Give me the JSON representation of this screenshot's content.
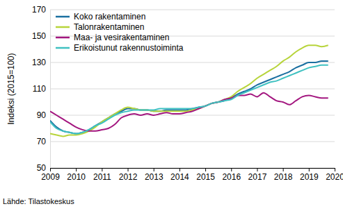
{
  "chart_data": {
    "type": "line",
    "y_label": "Indeksi (2015=100)",
    "source": "Lähde: Tilastokeskus",
    "x": [
      2009,
      2009.25,
      2009.5,
      2009.75,
      2010,
      2010.25,
      2010.5,
      2010.75,
      2011,
      2011.25,
      2011.5,
      2011.75,
      2012,
      2012.25,
      2012.5,
      2012.75,
      2013,
      2013.25,
      2013.5,
      2013.75,
      2014,
      2014.25,
      2014.5,
      2014.75,
      2015,
      2015.25,
      2015.5,
      2015.75,
      2016,
      2016.25,
      2016.5,
      2016.75,
      2017,
      2017.25,
      2017.5,
      2017.75,
      2018,
      2018.25,
      2018.5,
      2018.75,
      2019,
      2019.25,
      2019.5,
      2019.75
    ],
    "series": [
      {
        "name": "Koko rakentaminen",
        "color": "#1a6fa0",
        "values": [
          86,
          81,
          78,
          77,
          76,
          77,
          79,
          82,
          85,
          88,
          91,
          93,
          95,
          95,
          94,
          94,
          93,
          93,
          94,
          94,
          94,
          94,
          95,
          96,
          97,
          99,
          100,
          101,
          103,
          106,
          108,
          110,
          113,
          115,
          117,
          119,
          121,
          123,
          126,
          128,
          130,
          130,
          131,
          131
        ]
      },
      {
        "name": "Talonrakentaminen",
        "color": "#b7d43a",
        "values": [
          76,
          75,
          74,
          75,
          75,
          76,
          78,
          81,
          85,
          88,
          91,
          94,
          96,
          95,
          94,
          94,
          93,
          93,
          93,
          93,
          93,
          93,
          94,
          95,
          97,
          99,
          100,
          102,
          104,
          108,
          111,
          114,
          118,
          121,
          124,
          127,
          131,
          134,
          138,
          141,
          143,
          143,
          142,
          143
        ]
      },
      {
        "name": "Maa- ja vesirakentaminen",
        "color": "#a3167f",
        "values": [
          93,
          90,
          87,
          84,
          81,
          79,
          78,
          78,
          79,
          80,
          83,
          88,
          90,
          91,
          90,
          91,
          90,
          91,
          92,
          91,
          91,
          92,
          93,
          95,
          97,
          99,
          100,
          102,
          103,
          105,
          105,
          106,
          104,
          107,
          104,
          101,
          100,
          98,
          101,
          104,
          105,
          104,
          103,
          103
        ]
      },
      {
        "name": "Erikoistunut rakennustoiminta",
        "color": "#3fc1c1",
        "values": [
          85,
          80,
          78,
          77,
          76,
          77,
          79,
          82,
          84,
          87,
          90,
          92,
          93,
          94,
          94,
          94,
          94,
          95,
          95,
          95,
          95,
          95,
          95,
          96,
          97,
          99,
          100,
          101,
          102,
          105,
          107,
          109,
          111,
          113,
          115,
          116,
          118,
          120,
          122,
          124,
          126,
          127,
          128,
          128
        ]
      }
    ],
    "xlim": [
      2009,
      2020
    ],
    "xticks": [
      2009,
      2010,
      2011,
      2012,
      2013,
      2014,
      2015,
      2016,
      2017,
      2018,
      2019,
      2020
    ],
    "ylim": [
      50,
      170
    ],
    "yticks": [
      50,
      70,
      90,
      110,
      130,
      150,
      170
    ],
    "grid": true,
    "legend": "upper left"
  }
}
